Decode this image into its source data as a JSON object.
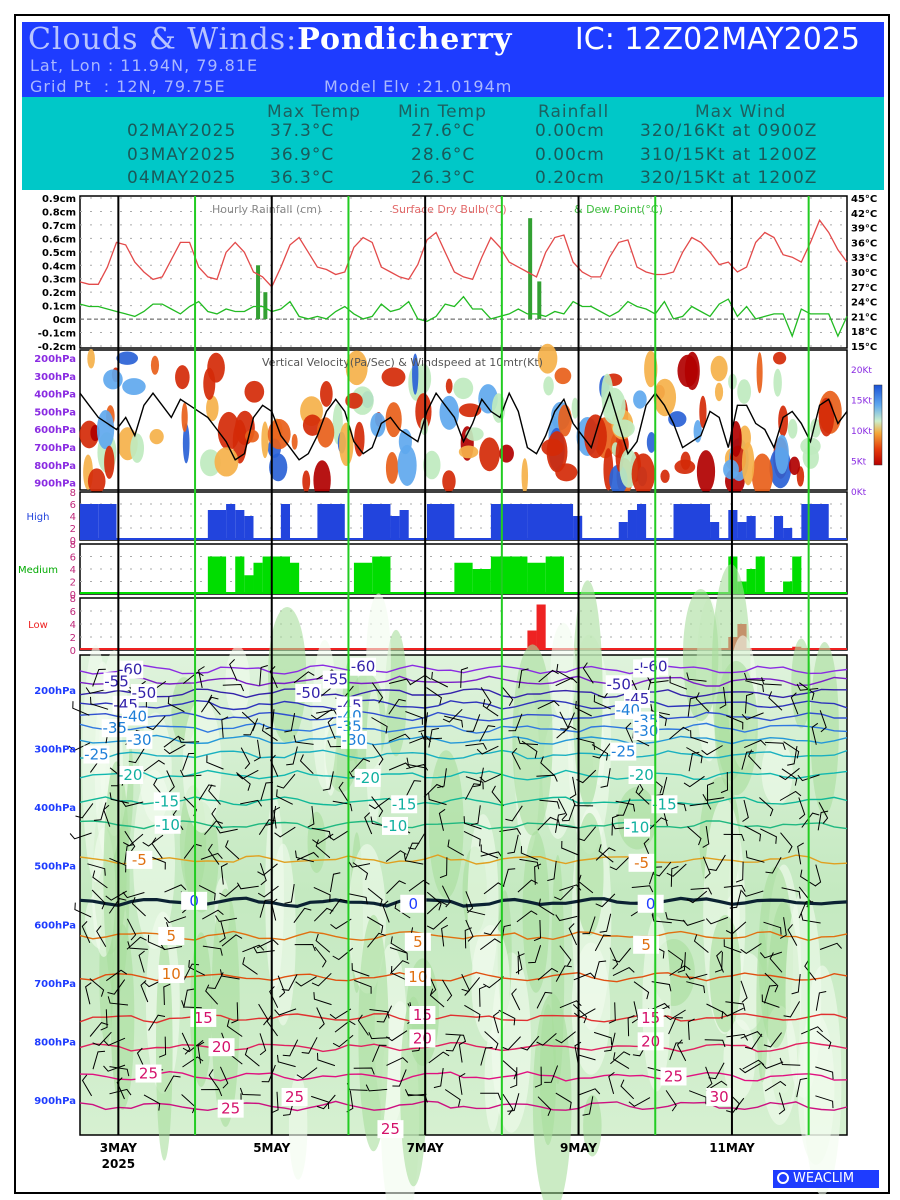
{
  "header": {
    "title_prefix": "Clouds & Winds:",
    "location": "Pondicherry",
    "ic_label": "IC: 12Z02MAY2025",
    "latlon": "Lat, Lon : 11.94N, 79.81E",
    "gridpt": "Grid Pt  : 12N, 79.75E",
    "model_elv": "Model Elv :21.0194m"
  },
  "summary": {
    "headers": [
      "Max Temp",
      "Min Temp",
      "Rainfall",
      "Max Wind"
    ],
    "rows": [
      {
        "date": "02MAY2025",
        "max": "37.3°C",
        "min": "27.6°C",
        "rain": "0.00cm",
        "wind": "320/16Kt at 0900Z"
      },
      {
        "date": "03MAY2025",
        "max": "36.9°C",
        "min": "28.6°C",
        "rain": "0.00cm",
        "wind": "310/15Kt at 1200Z"
      },
      {
        "date": "04MAY2025",
        "max": "36.3°C",
        "min": "26.3°C",
        "rain": "0.20cm",
        "wind": "320/15Kt at 1200Z"
      }
    ]
  },
  "chart_data": {
    "type": "line",
    "meteogram_title_parts": [
      "Hourly Rainfall (cm)",
      "Surface Dry Bulb(°C)",
      "& Dew Point(°C)"
    ],
    "rain_axis_labels": [
      "0.9cm",
      "0.8cm",
      "0.7cm",
      "0.6cm",
      "0.5cm",
      "0.4cm",
      "0.3cm",
      "0.2cm",
      "0.1cm",
      "0cm",
      "-0.1cm",
      "-0.2cm"
    ],
    "temp_axis_labels": [
      "45°C",
      "42°C",
      "39°C",
      "36°C",
      "33°C",
      "30°C",
      "27°C",
      "24°C",
      "21°C",
      "18°C",
      "15°C"
    ],
    "temp_ylim": [
      15,
      45
    ],
    "rain_ylim": [
      -0.2,
      0.9
    ],
    "drybulb": [
      28,
      27.5,
      27.5,
      31,
      36,
      35.5,
      32,
      30,
      28.5,
      29,
      32.5,
      36,
      36,
      31,
      29,
      28.5,
      34,
      36,
      34,
      30,
      29,
      27,
      31,
      35.5,
      37,
      34,
      31,
      30.5,
      29.5,
      30,
      35,
      37,
      36,
      31,
      30,
      29,
      28.5,
      31.5,
      36.5,
      38,
      34,
      30,
      29,
      28.5,
      33,
      37,
      35,
      32,
      31,
      30,
      29,
      34,
      37,
      37.5,
      32,
      30,
      29,
      29,
      33,
      36,
      36.5,
      31,
      30,
      29.5,
      29.5,
      30,
      34,
      37,
      36,
      34,
      31.5,
      32,
      30,
      31,
      36,
      38,
      37,
      33.5,
      33,
      32,
      36,
      40.5,
      38,
      34.5,
      32
    ],
    "dewpoint": [
      23.5,
      23,
      23,
      22.5,
      22,
      21.5,
      21,
      22,
      23.5,
      23.5,
      22.5,
      21.5,
      23,
      24,
      22,
      21.5,
      22.5,
      22,
      22,
      23,
      23,
      22,
      22.5,
      24,
      21,
      20.5,
      21,
      20.5,
      22,
      23,
      21.5,
      20.5,
      21,
      23.5,
      22,
      22.5,
      24,
      20.5,
      20,
      21,
      23.5,
      23,
      25,
      22.5,
      22.5,
      20.5,
      21,
      21.5,
      22.5,
      21.5,
      21.5,
      21,
      22,
      21.5,
      24,
      23,
      23,
      22,
      21,
      22,
      24,
      23,
      22.5,
      21.5,
      24,
      20.5,
      21,
      23,
      22,
      21,
      23.5,
      24.5,
      21,
      23,
      20.5,
      21,
      21.5,
      21.5,
      17,
      22.5,
      21.5,
      21.5,
      21.5,
      17,
      21
    ],
    "rainfall_bars": [
      {
        "x": 19.5,
        "v": 0.4
      },
      {
        "x": 20.3,
        "v": 0.2
      },
      {
        "x": 49.3,
        "v": 0.75
      },
      {
        "x": 50.3,
        "v": 0.28
      }
    ],
    "vv_title": "Vertical Velocity(Pa/Sec) & Windspeed at 10mtr(Kt)",
    "vv_pressure_labels": [
      "200hPa",
      "300hPa",
      "400hPa",
      "500hPa",
      "600hPa",
      "700hPa",
      "800hPa",
      "900hPa"
    ],
    "ws_axis_labels": [
      "20Kt",
      "15Kt",
      "10Kt",
      "5Kt",
      "0Kt"
    ],
    "wind10m": [
      16,
      14,
      12,
      11,
      10,
      12,
      9,
      14,
      16,
      14,
      12,
      15,
      14,
      13,
      12,
      10,
      8,
      5,
      6,
      12,
      14,
      13,
      9,
      7,
      5,
      6,
      9,
      13,
      15,
      13,
      8,
      6,
      7,
      11,
      12,
      10,
      9,
      8,
      13,
      16,
      14,
      12,
      8,
      11,
      15,
      13,
      12,
      16,
      13,
      7,
      6,
      9,
      13,
      15,
      11,
      9,
      7,
      12,
      16,
      11,
      6,
      8,
      14,
      16,
      14,
      11,
      7,
      8,
      9,
      13,
      12,
      7,
      14,
      14,
      11,
      10,
      7,
      12,
      13,
      11,
      8,
      14,
      15,
      11,
      13
    ],
    "cloud_panels": [
      {
        "name": "High",
        "ylabels": [
          "8",
          "6",
          "4",
          "2",
          "0"
        ],
        "color": "#2244dd",
        "bars": [
          [
            0,
            2,
            6
          ],
          [
            2,
            4,
            6
          ],
          [
            14,
            16,
            5
          ],
          [
            16,
            17,
            6
          ],
          [
            17,
            18,
            5
          ],
          [
            18,
            19,
            4
          ],
          [
            22,
            23,
            6
          ],
          [
            26,
            29,
            6
          ],
          [
            31,
            34,
            6
          ],
          [
            34,
            35,
            4
          ],
          [
            35,
            36,
            5
          ],
          [
            38,
            41,
            6
          ],
          [
            45,
            49,
            6
          ],
          [
            49,
            54,
            6
          ],
          [
            54,
            55,
            4
          ],
          [
            59,
            60,
            3
          ],
          [
            60,
            61,
            5
          ],
          [
            61,
            62,
            6
          ],
          [
            65,
            69,
            6
          ],
          [
            69,
            70,
            3
          ],
          [
            71,
            72,
            5
          ],
          [
            72,
            73,
            3
          ],
          [
            73,
            74,
            4
          ],
          [
            76,
            77,
            4
          ],
          [
            77,
            78,
            2
          ],
          [
            79,
            82,
            6
          ]
        ]
      },
      {
        "name": "Medium",
        "ylabels": [
          "8",
          "6",
          "4",
          "2",
          "0"
        ],
        "color": "#00dd00",
        "bars": [
          [
            14,
            16,
            6
          ],
          [
            17,
            18,
            6
          ],
          [
            18,
            19,
            3
          ],
          [
            19,
            20,
            5
          ],
          [
            20,
            23,
            6
          ],
          [
            23,
            24,
            5
          ],
          [
            30,
            32,
            5
          ],
          [
            32,
            34,
            6
          ],
          [
            41,
            43,
            5
          ],
          [
            43,
            45,
            4
          ],
          [
            45,
            49,
            6
          ],
          [
            49,
            51,
            5
          ],
          [
            51,
            53,
            6
          ],
          [
            71,
            72,
            6
          ],
          [
            72,
            73,
            2
          ],
          [
            73,
            74,
            4
          ],
          [
            74,
            75,
            6
          ],
          [
            77,
            78,
            2
          ],
          [
            78,
            79,
            6
          ]
        ]
      },
      {
        "name": "Low",
        "ylabels": [
          "8",
          "6",
          "4",
          "2",
          "0"
        ],
        "color": "#ee2222",
        "bars": [
          [
            49,
            50,
            3
          ],
          [
            50,
            51,
            7
          ],
          [
            71,
            72,
            2
          ],
          [
            72,
            73,
            4
          ],
          [
            78,
            79,
            0.5
          ]
        ]
      }
    ],
    "cross_pressure_labels": [
      "200hPa",
      "300hPa",
      "400hPa",
      "500hPa",
      "600hPa",
      "700hPa",
      "800hPa",
      "900hPa"
    ],
    "temp_contour_labels": [
      {
        "t": "-60",
        "p": 165,
        "x": 5.5
      },
      {
        "t": "-55",
        "p": 185,
        "x": 4
      },
      {
        "t": "-50",
        "p": 205,
        "x": 7
      },
      {
        "t": "-45",
        "p": 225,
        "x": 5
      },
      {
        "t": "-40",
        "p": 245,
        "x": 6
      },
      {
        "t": "-35",
        "p": 265,
        "x": 3.8
      },
      {
        "t": "-30",
        "p": 285,
        "x": 6.5
      },
      {
        "t": "-25",
        "p": 310,
        "x": 1.8
      },
      {
        "t": "-20",
        "p": 345,
        "x": 5.5
      },
      {
        "t": "-15",
        "p": 390,
        "x": 9.5
      },
      {
        "t": "-10",
        "p": 430,
        "x": 9.6
      },
      {
        "t": "-5",
        "p": 490,
        "x": 6.5
      },
      {
        "t": "0",
        "p": 560,
        "x": 12.5
      },
      {
        "t": "5",
        "p": 620,
        "x": 10
      },
      {
        "t": "10",
        "p": 685,
        "x": 10
      },
      {
        "t": "15",
        "p": 760,
        "x": 13.5
      },
      {
        "t": "20",
        "p": 810,
        "x": 15.5
      },
      {
        "t": "25",
        "p": 855,
        "x": 7.5
      },
      {
        "t": "-60",
        "p": 160,
        "x": 31
      },
      {
        "t": "-55",
        "p": 182,
        "x": 28
      },
      {
        "t": "-50",
        "p": 205,
        "x": 25
      },
      {
        "t": "-45",
        "p": 226,
        "x": 29.5
      },
      {
        "t": "-40",
        "p": 244,
        "x": 29.5
      },
      {
        "t": "-35",
        "p": 262,
        "x": 29.5
      },
      {
        "t": "-30",
        "p": 285,
        "x": 30
      },
      {
        "t": "-20",
        "p": 350,
        "x": 31.5
      },
      {
        "t": "-15",
        "p": 395,
        "x": 35.5
      },
      {
        "t": "-10",
        "p": 432,
        "x": 34.5
      },
      {
        "t": "0",
        "p": 565,
        "x": 36.5
      },
      {
        "t": "5",
        "p": 630,
        "x": 37
      },
      {
        "t": "10",
        "p": 690,
        "x": 37
      },
      {
        "t": "15",
        "p": 755,
        "x": 37.5
      },
      {
        "t": "20",
        "p": 795,
        "x": 37.5
      },
      {
        "t": "-55",
        "p": 163,
        "x": 62
      },
      {
        "t": "-60",
        "p": 160,
        "x": 63
      },
      {
        "t": "-50",
        "p": 190,
        "x": 59
      },
      {
        "t": "-45",
        "p": 215,
        "x": 61
      },
      {
        "t": "-40",
        "p": 234,
        "x": 60
      },
      {
        "t": "-35",
        "p": 252,
        "x": 62
      },
      {
        "t": "-30",
        "p": 270,
        "x": 62
      },
      {
        "t": "-25",
        "p": 305,
        "x": 59.5
      },
      {
        "t": "-20",
        "p": 345,
        "x": 61.5
      },
      {
        "t": "-15",
        "p": 395,
        "x": 64
      },
      {
        "t": "-10",
        "p": 435,
        "x": 61
      },
      {
        "t": "-5",
        "p": 495,
        "x": 61.5
      },
      {
        "t": "0",
        "p": 565,
        "x": 62.5
      },
      {
        "t": "5",
        "p": 635,
        "x": 62
      },
      {
        "t": "15",
        "p": 760,
        "x": 62.5
      },
      {
        "t": "20",
        "p": 800,
        "x": 62.5
      },
      {
        "t": "25",
        "p": 860,
        "x": 65
      },
      {
        "t": "30",
        "p": 895,
        "x": 70
      },
      {
        "t": "25",
        "p": 895,
        "x": 23.5
      },
      {
        "t": "25",
        "p": 915,
        "x": 16.5
      },
      {
        "t": "25",
        "p": 950,
        "x": 34
      }
    ],
    "x_labels": [
      {
        "x": 6,
        "t": "3MAY"
      },
      {
        "x": 30,
        "t": "5MAY"
      },
      {
        "x": 54,
        "t": "7MAY"
      },
      {
        "x": 78,
        "t": "9MAY"
      },
      {
        "x": 102,
        "t": "11MAY"
      }
    ],
    "x_year": "2025",
    "black_day_lines": [
      6,
      30,
      54,
      78,
      102
    ],
    "green_lines": [
      18,
      42,
      66,
      90,
      114
    ]
  },
  "footer": {
    "brand": "WEACLIM"
  }
}
